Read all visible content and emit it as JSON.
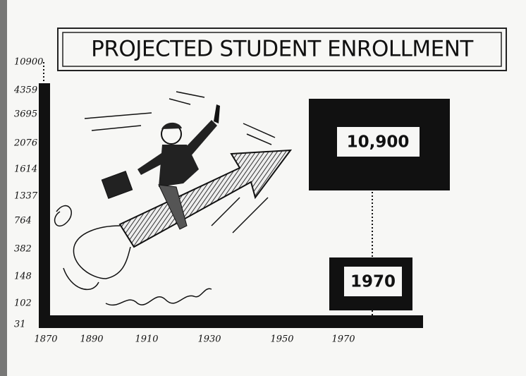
{
  "title": "PROJECTED STUDENT ENROLLMENT",
  "y_labels": [
    "10900",
    "4359",
    "3695",
    "2076",
    "1614",
    "1337",
    "764",
    "382",
    "148",
    "102",
    "31"
  ],
  "x_labels": [
    "1870",
    "1890",
    "1910",
    "1930",
    "1950",
    "1970"
  ],
  "callouts": {
    "value": "10,900",
    "year": "1970"
  }
}
